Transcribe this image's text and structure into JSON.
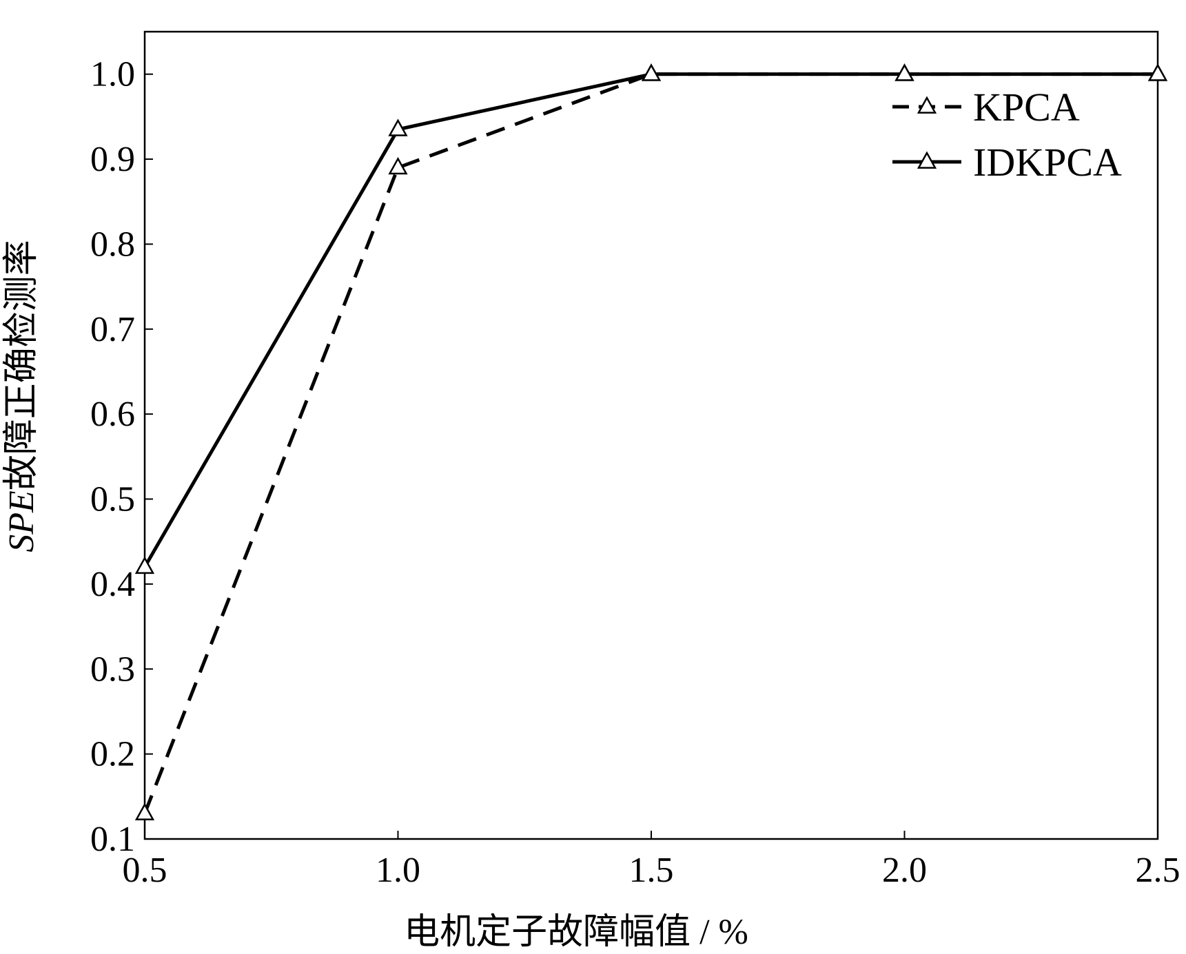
{
  "chart_data": {
    "type": "line",
    "title": "",
    "xlabel": "电机定子故障幅值 / %",
    "ylabel_prefix": "SPE",
    "ylabel_suffix": "故障正确检测率",
    "x": [
      0.5,
      1.0,
      1.5,
      2.0,
      2.5
    ],
    "xlim": [
      0.5,
      2.5
    ],
    "ylim": [
      0.1,
      1.05
    ],
    "x_ticks": [
      "0.5",
      "1.0",
      "1.5",
      "2.0",
      "2.5"
    ],
    "y_ticks": [
      "0.1",
      "0.2",
      "0.3",
      "0.4",
      "0.5",
      "0.6",
      "0.7",
      "0.8",
      "0.9",
      "1.0"
    ],
    "grid": false,
    "legend_position": "top-right",
    "series": [
      {
        "name": "KPCA",
        "style": "dashed",
        "marker": "triangle",
        "color": "#000000",
        "values": [
          0.13,
          0.89,
          1.0,
          1.0,
          1.0
        ]
      },
      {
        "name": "IDKPCA",
        "style": "solid",
        "marker": "triangle",
        "color": "#000000",
        "values": [
          0.42,
          0.935,
          1.0,
          1.0,
          1.0
        ]
      }
    ]
  }
}
